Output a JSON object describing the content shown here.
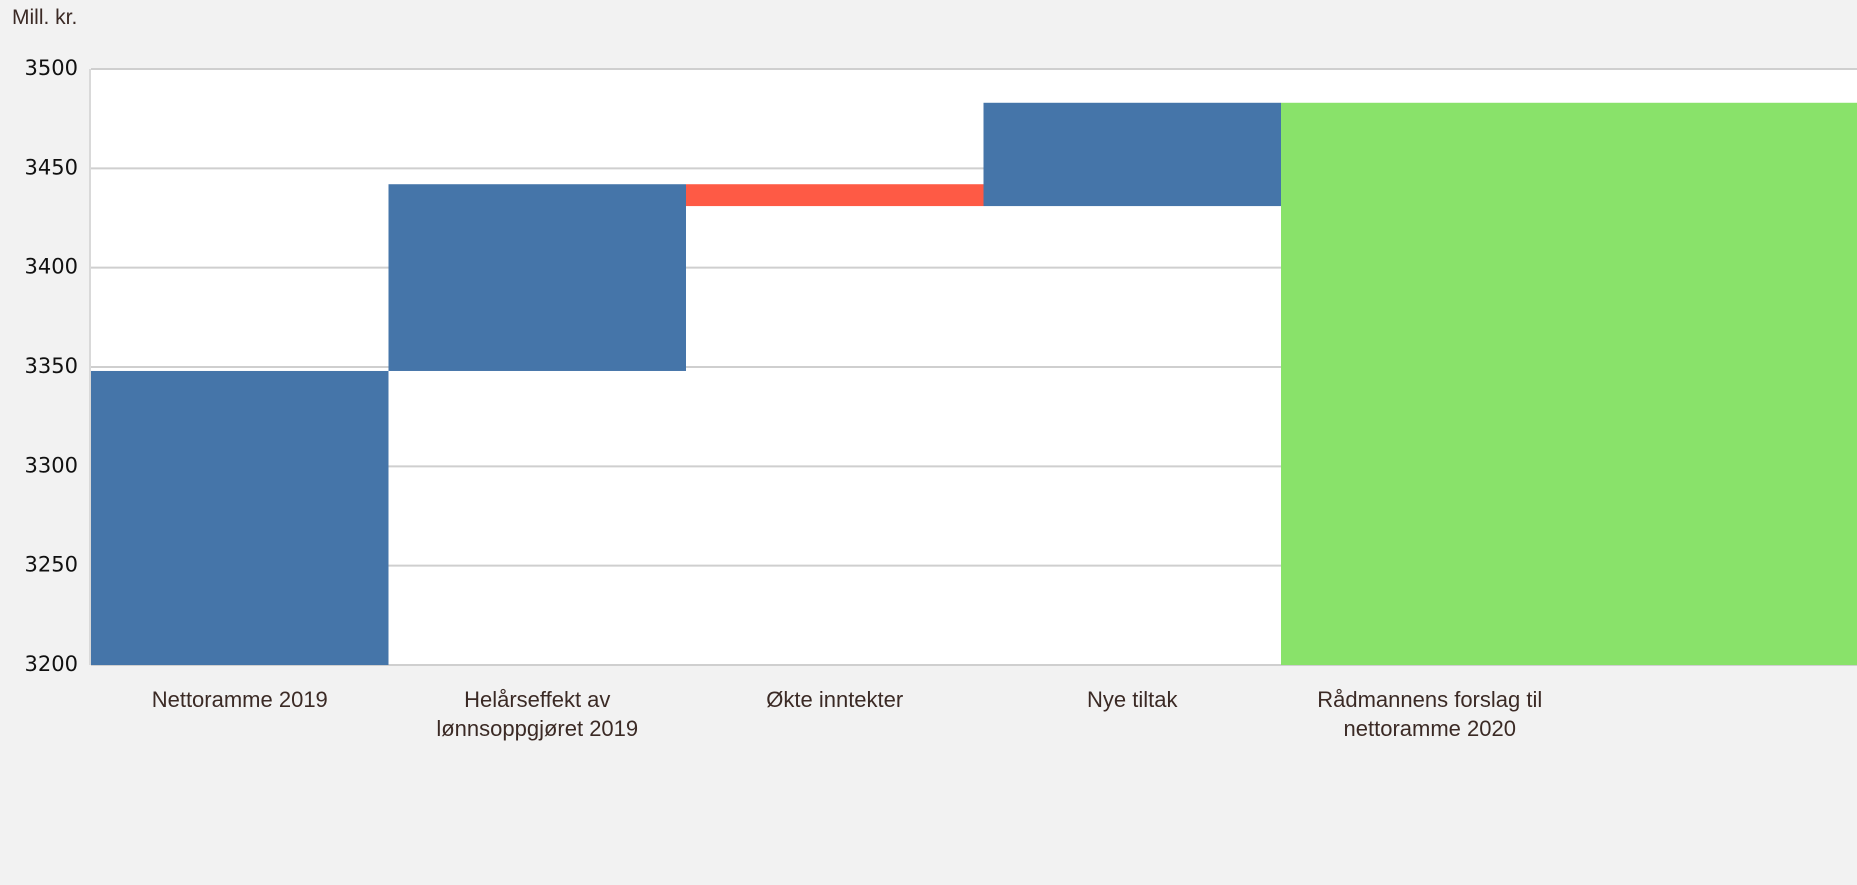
{
  "chart_data": {
    "type": "waterfall",
    "y_label": "Mill. kr.",
    "categories": [
      "Nettoramme 2019",
      "Helårseffekt av lønnsoppgjøret 2019",
      "Økte inntekter",
      "Nye tiltak",
      "Rådmannens forslag til nettoramme 2020"
    ],
    "values": [
      3348,
      94,
      -11,
      52,
      3483
    ],
    "measure": [
      "absolute",
      "relative",
      "relative",
      "relative",
      "total"
    ],
    "increase_color": "#4575a9",
    "decrease_color": "#fe5a45",
    "total_color": "#89e26a",
    "ylim": [
      3200,
      3500
    ],
    "yticks": [
      3200,
      3250,
      3300,
      3350,
      3400,
      3450,
      3500
    ],
    "grid": true
  }
}
